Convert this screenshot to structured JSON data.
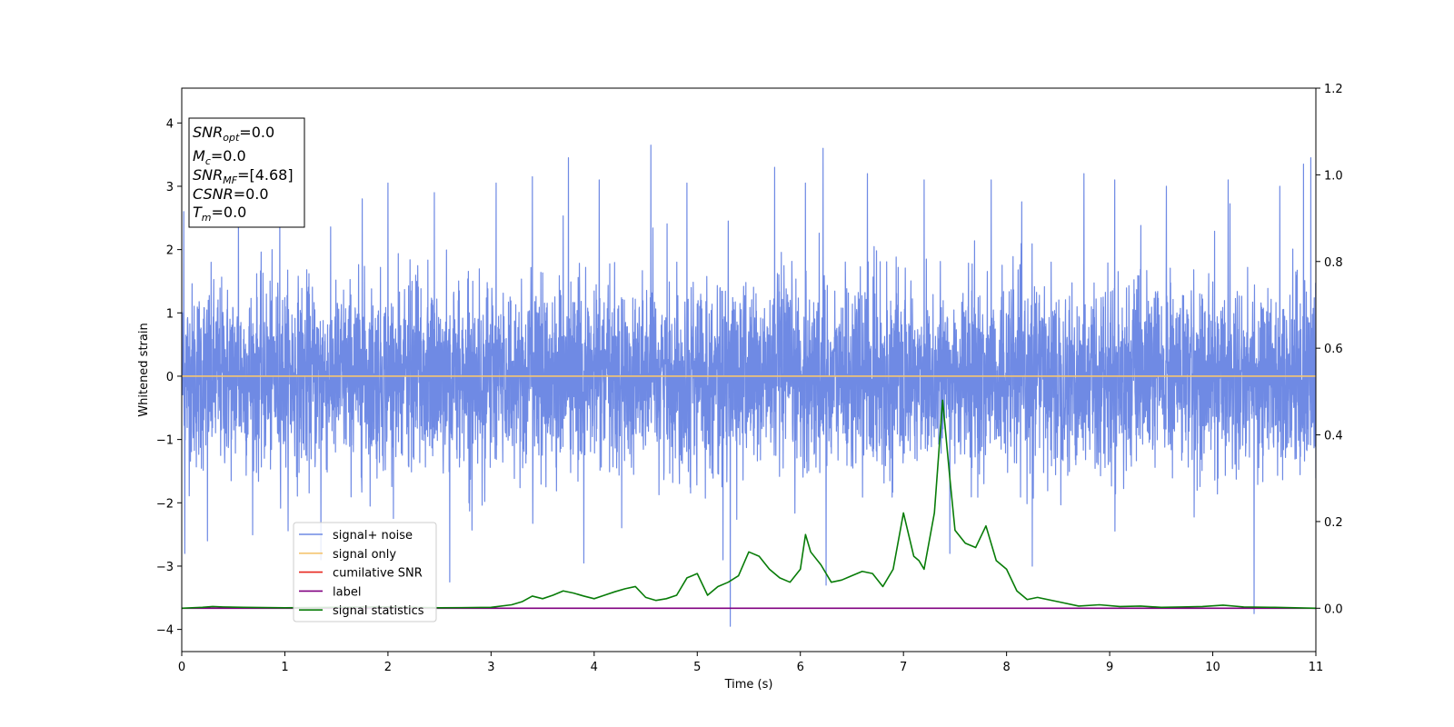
{
  "chart_data": {
    "type": "line",
    "xlabel": "Time (s)",
    "ylabel": "Whitened strain",
    "xlim": [
      0,
      11
    ],
    "ylim": [
      -4.35,
      4.55
    ],
    "y2lim": [
      -0.1,
      1.2
    ],
    "xticks": [
      "0",
      "1",
      "2",
      "3",
      "4",
      "5",
      "6",
      "7",
      "8",
      "9",
      "10",
      "11"
    ],
    "yticks": [
      "−4",
      "−3",
      "−2",
      "−1",
      "0",
      "1",
      "2",
      "3",
      "4"
    ],
    "y2ticks": [
      "0.0",
      "0.2",
      "0.4",
      "0.6",
      "0.8",
      "1.0",
      "1.2"
    ],
    "grid": false,
    "legend_position": "lower-left",
    "annotation": {
      "position": "upper-left",
      "lines": [
        {
          "label": "SNR",
          "sub": "opt",
          "value": "=0.0"
        },
        {
          "label": "M",
          "sub": "c",
          "value": "=0.0"
        },
        {
          "label": "SNR",
          "sub": "MF",
          "value": "=[4.68]"
        },
        {
          "label": "CSNR",
          "sub": "",
          "value": "=0.0"
        },
        {
          "label": "T",
          "sub": "m",
          "value": "=0.0"
        }
      ]
    },
    "series": [
      {
        "name": "signal+ noise",
        "color": "#6f8ae4",
        "axis": "left",
        "kind": "noise",
        "envelope_typical": [
          -2.0,
          2.2
        ],
        "spikes": [
          {
            "x": 0.02,
            "y": 2.6
          },
          {
            "x": 0.03,
            "y": -2.8
          },
          {
            "x": 0.25,
            "y": -2.6
          },
          {
            "x": 0.55,
            "y": 2.6
          },
          {
            "x": 0.95,
            "y": 2.8
          },
          {
            "x": 1.35,
            "y": -2.9
          },
          {
            "x": 1.75,
            "y": 2.8
          },
          {
            "x": 2.0,
            "y": 3.05
          },
          {
            "x": 2.45,
            "y": 2.9
          },
          {
            "x": 2.6,
            "y": -3.25
          },
          {
            "x": 3.05,
            "y": 3.05
          },
          {
            "x": 3.4,
            "y": 3.15
          },
          {
            "x": 3.75,
            "y": 3.45
          },
          {
            "x": 3.9,
            "y": -2.95
          },
          {
            "x": 4.05,
            "y": 3.1
          },
          {
            "x": 4.55,
            "y": 3.65
          },
          {
            "x": 4.9,
            "y": 3.05
          },
          {
            "x": 5.25,
            "y": -2.9
          },
          {
            "x": 5.32,
            "y": -3.95
          },
          {
            "x": 5.75,
            "y": 3.3
          },
          {
            "x": 6.05,
            "y": 3.05
          },
          {
            "x": 6.22,
            "y": 3.6
          },
          {
            "x": 6.25,
            "y": -3.3
          },
          {
            "x": 6.65,
            "y": 3.2
          },
          {
            "x": 7.2,
            "y": 3.1
          },
          {
            "x": 7.45,
            "y": -2.8
          },
          {
            "x": 7.85,
            "y": 3.1
          },
          {
            "x": 8.25,
            "y": -3.0
          },
          {
            "x": 8.75,
            "y": 3.2
          },
          {
            "x": 9.05,
            "y": 3.1
          },
          {
            "x": 9.55,
            "y": 3.0
          },
          {
            "x": 10.15,
            "y": 3.1
          },
          {
            "x": 10.4,
            "y": -3.75
          },
          {
            "x": 10.65,
            "y": 3.0
          },
          {
            "x": 10.88,
            "y": 3.35
          },
          {
            "x": 10.95,
            "y": 3.45
          }
        ]
      },
      {
        "name": "signal only",
        "color": "#f5c571",
        "axis": "left",
        "x": [
          0,
          11
        ],
        "values": [
          0,
          0
        ]
      },
      {
        "name": "cumilative SNR",
        "color": "#e8261e",
        "axis": "right",
        "x": [],
        "values": []
      },
      {
        "name": "label",
        "color": "#800080",
        "axis": "right",
        "x": [
          0,
          11
        ],
        "values": [
          0.0,
          0.0
        ]
      },
      {
        "name": "signal statistics",
        "color": "#087c08",
        "axis": "right",
        "x": [
          0,
          0.2,
          0.3,
          0.4,
          0.6,
          1.0,
          1.5,
          2.0,
          2.5,
          3.0,
          3.2,
          3.3,
          3.4,
          3.5,
          3.6,
          3.7,
          3.8,
          3.9,
          4.0,
          4.1,
          4.2,
          4.3,
          4.4,
          4.5,
          4.6,
          4.7,
          4.8,
          4.9,
          5.0,
          5.1,
          5.2,
          5.3,
          5.4,
          5.5,
          5.6,
          5.7,
          5.8,
          5.9,
          6.0,
          6.05,
          6.1,
          6.2,
          6.3,
          6.4,
          6.5,
          6.6,
          6.7,
          6.8,
          6.9,
          7.0,
          7.1,
          7.15,
          7.2,
          7.3,
          7.38,
          7.45,
          7.5,
          7.6,
          7.7,
          7.8,
          7.9,
          8.0,
          8.1,
          8.2,
          8.3,
          8.5,
          8.7,
          8.9,
          9.1,
          9.3,
          9.5,
          9.7,
          9.9,
          10.1,
          10.3,
          10.6,
          11.0
        ],
        "values": [
          0.0,
          0.002,
          0.004,
          0.003,
          0.002,
          0.001,
          0.002,
          0.003,
          0.001,
          0.002,
          0.008,
          0.015,
          0.028,
          0.022,
          0.03,
          0.04,
          0.035,
          0.028,
          0.022,
          0.03,
          0.038,
          0.045,
          0.05,
          0.025,
          0.018,
          0.022,
          0.03,
          0.07,
          0.08,
          0.03,
          0.05,
          0.06,
          0.075,
          0.13,
          0.12,
          0.09,
          0.07,
          0.06,
          0.09,
          0.17,
          0.13,
          0.1,
          0.06,
          0.065,
          0.075,
          0.085,
          0.08,
          0.05,
          0.09,
          0.22,
          0.12,
          0.11,
          0.09,
          0.22,
          0.48,
          0.3,
          0.18,
          0.15,
          0.14,
          0.19,
          0.11,
          0.09,
          0.04,
          0.02,
          0.025,
          0.015,
          0.005,
          0.008,
          0.004,
          0.005,
          0.002,
          0.003,
          0.004,
          0.007,
          0.003,
          0.002,
          0.0
        ]
      }
    ]
  }
}
